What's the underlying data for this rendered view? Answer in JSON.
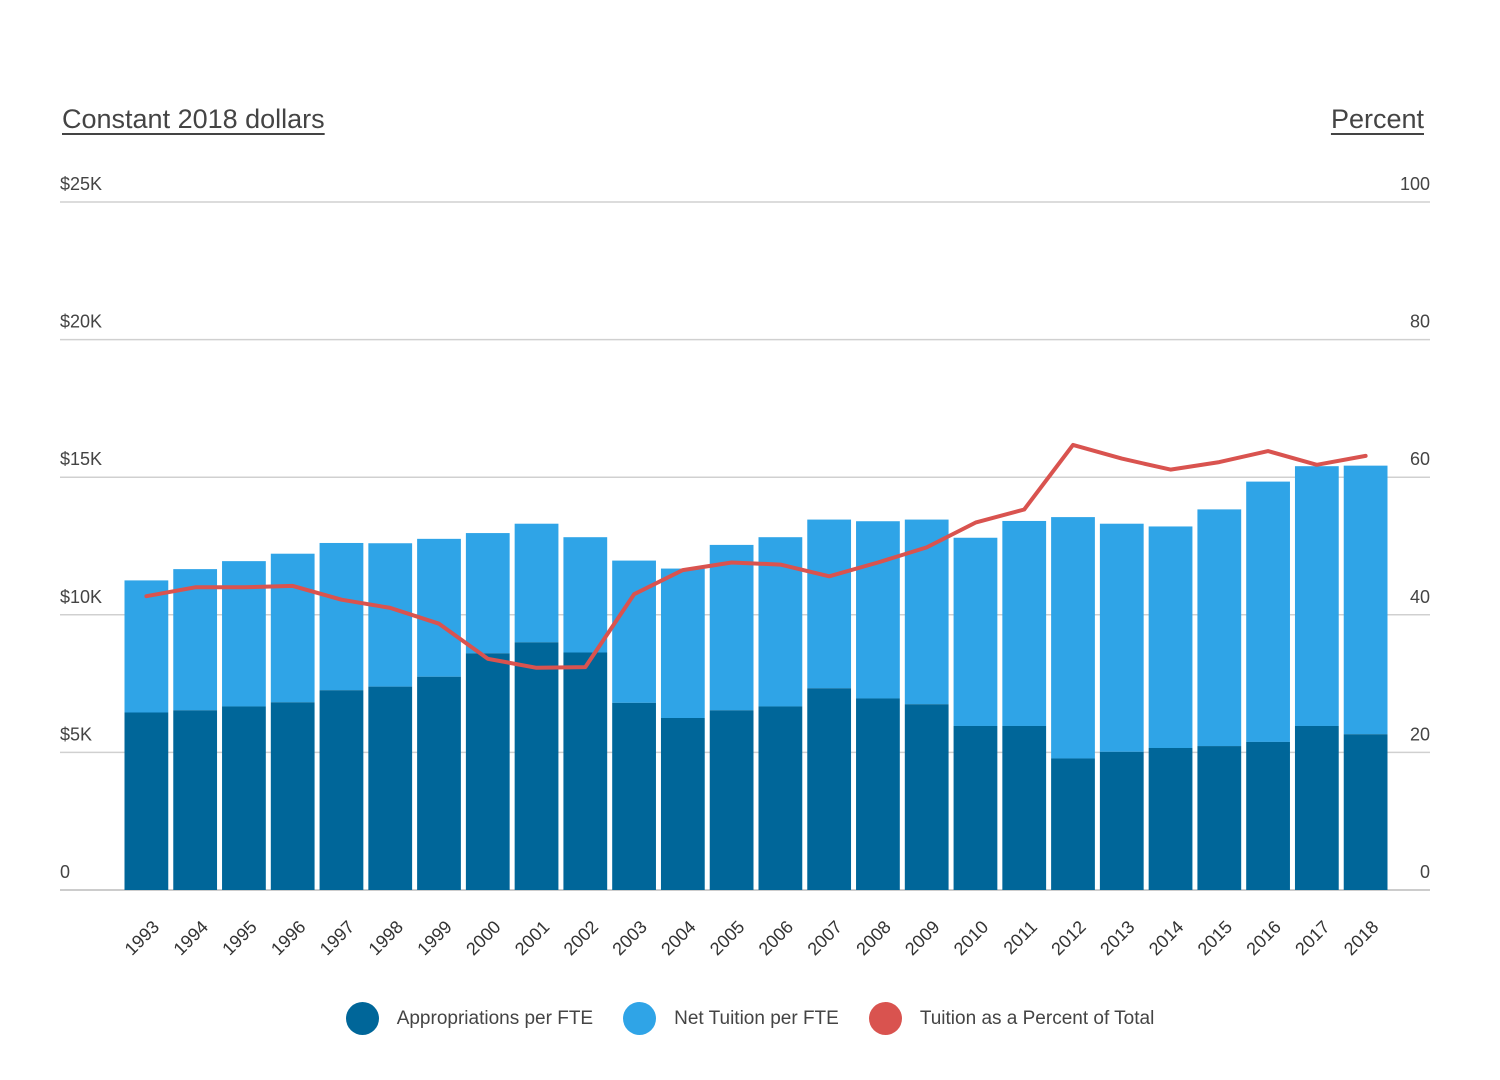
{
  "chart_data": {
    "type": "bar",
    "stacked": true,
    "left_axis_title": "Constant 2018 dollars",
    "right_axis_title": "Percent",
    "left_ylim": [
      0,
      25000
    ],
    "right_ylim": [
      0,
      100
    ],
    "left_ticks": [
      {
        "value": 0,
        "label": "0"
      },
      {
        "value": 5000,
        "label": "$5K"
      },
      {
        "value": 10000,
        "label": "$10K"
      },
      {
        "value": 15000,
        "label": "$15K"
      },
      {
        "value": 20000,
        "label": "$20K"
      },
      {
        "value": 25000,
        "label": "$25K"
      }
    ],
    "right_ticks": [
      {
        "value": 0,
        "label": "0"
      },
      {
        "value": 20,
        "label": "20"
      },
      {
        "value": 40,
        "label": "40"
      },
      {
        "value": 60,
        "label": "60"
      },
      {
        "value": 80,
        "label": "80"
      },
      {
        "value": 100,
        "label": "100"
      }
    ],
    "grid": true,
    "legend_position": "bottom",
    "categories": [
      "1993",
      "1994",
      "1995",
      "1996",
      "1997",
      "1998",
      "1999",
      "2000",
      "2001",
      "2002",
      "2003",
      "2004",
      "2005",
      "2006",
      "2007",
      "2008",
      "2009",
      "2010",
      "2011",
      "2012",
      "2013",
      "2014",
      "2015",
      "2016",
      "2017",
      "2018"
    ],
    "series": [
      {
        "name": "Appropriations per FTE",
        "type": "bar",
        "axis": "left",
        "color": "#006699",
        "values": [
          6450,
          6530,
          6670,
          6820,
          7260,
          7390,
          7750,
          8600,
          9000,
          8630,
          6800,
          6250,
          6530,
          6670,
          7330,
          6960,
          6750,
          5960,
          5960,
          4780,
          5020,
          5160,
          5230,
          5380,
          5960,
          5660
        ]
      },
      {
        "name": "Net Tuition per FTE",
        "type": "bar",
        "axis": "left",
        "color": "#2fa4e7",
        "values": [
          4800,
          5130,
          5280,
          5400,
          5350,
          5210,
          5010,
          4370,
          4310,
          4190,
          5170,
          5430,
          6010,
          6150,
          6130,
          6440,
          6710,
          6840,
          7450,
          8770,
          8290,
          8050,
          8600,
          9460,
          9440,
          9760
        ]
      },
      {
        "name": "Tuition as a Percent of Total",
        "type": "line",
        "axis": "right",
        "color": "#d9534f",
        "values": [
          42.7,
          44.0,
          44.0,
          44.2,
          42.2,
          41.0,
          38.7,
          33.6,
          32.3,
          32.4,
          43.0,
          46.5,
          47.6,
          47.3,
          45.6,
          47.6,
          49.8,
          53.4,
          55.3,
          64.7,
          62.7,
          61.1,
          62.2,
          63.8,
          61.8,
          63.1
        ]
      }
    ]
  }
}
